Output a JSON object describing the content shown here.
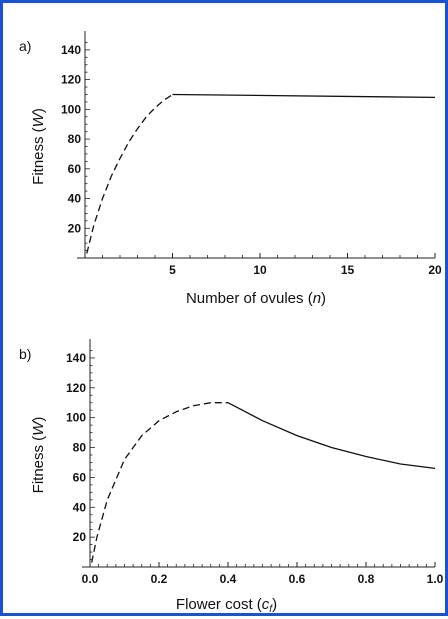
{
  "frame_color": "#1a52d6",
  "chart_data": [
    {
      "type": "line",
      "panel_label": "a)",
      "ylabel": "Fitness (W)",
      "ylabel_parts": [
        "Fitness (",
        "W",
        ")"
      ],
      "xlabel": "Number of ovules (n)",
      "xlabel_parts": [
        "Number of ovules (",
        "n",
        ")"
      ],
      "xlim": [
        0,
        20
      ],
      "ylim": [
        0,
        150
      ],
      "xticks": [
        5,
        10,
        15,
        20
      ],
      "yticks": [
        20,
        40,
        60,
        80,
        100,
        120,
        140
      ],
      "grid": false,
      "series": [
        {
          "style": "dashed",
          "x": [
            0.1,
            0.5,
            1,
            1.5,
            2,
            2.5,
            3,
            3.5,
            4,
            4.5,
            5
          ],
          "y": [
            3,
            22,
            40,
            55,
            67,
            78,
            87,
            95,
            101,
            106,
            110
          ]
        },
        {
          "style": "solid",
          "x": [
            5,
            20
          ],
          "y": [
            110,
            108
          ]
        }
      ]
    },
    {
      "type": "line",
      "panel_label": "b)",
      "ylabel": "Fitness (W)",
      "ylabel_parts": [
        "Fitness (",
        "W",
        ")"
      ],
      "xlabel": "Flower cost (cf)",
      "xlabel_parts": [
        "Flower cost (",
        "c",
        "f",
        ")"
      ],
      "xlim": [
        0,
        1
      ],
      "ylim": [
        0,
        150
      ],
      "xticks": [
        "0.0",
        "0.2",
        "0.4",
        "0.6",
        "0.8",
        "1.0"
      ],
      "yticks": [
        20,
        40,
        60,
        80,
        100,
        120,
        140
      ],
      "grid": false,
      "series": [
        {
          "style": "dashed",
          "x": [
            0.005,
            0.02,
            0.05,
            0.1,
            0.15,
            0.2,
            0.25,
            0.3,
            0.35,
            0.4
          ],
          "y": [
            3,
            20,
            45,
            72,
            88,
            98,
            104,
            108,
            110,
            110
          ]
        },
        {
          "style": "solid",
          "x": [
            0.4,
            0.5,
            0.6,
            0.7,
            0.8,
            0.9,
            1.0
          ],
          "y": [
            110,
            98,
            88,
            80,
            74,
            69,
            66
          ]
        }
      ]
    }
  ]
}
